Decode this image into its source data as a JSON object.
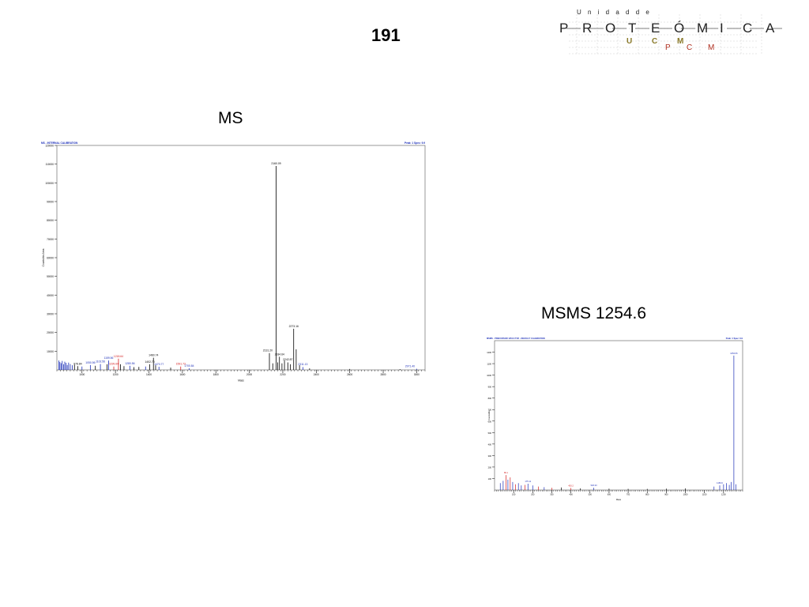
{
  "page": {
    "number": "191"
  },
  "logo": {
    "line1": "U n i d a d   d e",
    "letters": [
      "P",
      "R",
      "O",
      "T",
      "E",
      "Ó",
      "M",
      "I",
      "C",
      "A"
    ],
    "ucm": [
      "U",
      "C",
      "M"
    ],
    "pcm": [
      "P",
      "C",
      "M"
    ],
    "colors": {
      "ucm": "#8a7a2a",
      "pcm": "#b03020",
      "text": "#222222"
    }
  },
  "charts_titles": {
    "ms": "MS",
    "msms": "MSMS 1254.6"
  },
  "chart_data": [
    {
      "type": "bar",
      "id": "ms",
      "title": "MS",
      "header_left": "MS - INTERNAL CALIBRATION",
      "header_right": "Peak: 1 Spec: 9.9",
      "xlabel": "Mass",
      "ylabel": "Counts/bin Area",
      "xlim": [
        850,
        3050
      ],
      "ylim": [
        0,
        120000
      ],
      "x_ticks": [
        1000,
        1200,
        1400,
        1600,
        1800,
        2000,
        2200,
        2400,
        2600,
        2800,
        3000
      ],
      "y_ticks": [
        10000,
        20000,
        30000,
        40000,
        50000,
        60000,
        70000,
        80000,
        90000,
        100000,
        110000,
        120000
      ],
      "colors": {
        "main": "#000000",
        "blue": "#1c2fb8",
        "red": "#d42020"
      },
      "peaks": [
        {
          "x": 862,
          "y": 5000,
          "c": "blue"
        },
        {
          "x": 868,
          "y": 4200,
          "c": "blue"
        },
        {
          "x": 875,
          "y": 3600,
          "c": "blue"
        },
        {
          "x": 882,
          "y": 4800,
          "c": "blue"
        },
        {
          "x": 890,
          "y": 3000,
          "c": "blue"
        },
        {
          "x": 897,
          "y": 4400,
          "c": "blue"
        },
        {
          "x": 905,
          "y": 3800,
          "c": "blue"
        },
        {
          "x": 912,
          "y": 2600,
          "c": "blue"
        },
        {
          "x": 920,
          "y": 3900,
          "c": "blue"
        },
        {
          "x": 930,
          "y": 3100,
          "c": "blue"
        },
        {
          "x": 942,
          "y": 2500,
          "c": "blue"
        },
        {
          "x": 955,
          "y": 2800,
          "c": "black"
        },
        {
          "x": 975,
          "y": 2000,
          "c": "black"
        },
        {
          "x": 1000,
          "y": 1800,
          "c": "blue"
        },
        {
          "x": 1050,
          "y": 2600,
          "c": "blue"
        },
        {
          "x": 1080,
          "y": 2200,
          "c": "black"
        },
        {
          "x": 1110,
          "y": 3100,
          "c": "blue"
        },
        {
          "x": 1150,
          "y": 3000,
          "c": "black"
        },
        {
          "x": 1159,
          "y": 5000,
          "c": "blue"
        },
        {
          "x": 1190,
          "y": 1800,
          "c": "red"
        },
        {
          "x": 1218,
          "y": 6000,
          "c": "red"
        },
        {
          "x": 1230,
          "y": 3000,
          "c": "black"
        },
        {
          "x": 1251,
          "y": 2000,
          "c": "black"
        },
        {
          "x": 1286,
          "y": 2200,
          "c": "blue"
        },
        {
          "x": 1310,
          "y": 1500,
          "c": "black"
        },
        {
          "x": 1340,
          "y": 1600,
          "c": "black"
        },
        {
          "x": 1380,
          "y": 1800,
          "c": "blue"
        },
        {
          "x": 1405,
          "y": 3000,
          "c": "black"
        },
        {
          "x": 1427,
          "y": 6500,
          "c": "black"
        },
        {
          "x": 1440,
          "y": 2500,
          "c": "black"
        },
        {
          "x": 1460,
          "y": 1700,
          "c": "blue"
        },
        {
          "x": 1530,
          "y": 1200,
          "c": "black"
        },
        {
          "x": 1590,
          "y": 1800,
          "c": "red"
        },
        {
          "x": 1640,
          "y": 900,
          "c": "blue"
        },
        {
          "x": 2120,
          "y": 9000,
          "c": "black"
        },
        {
          "x": 2140,
          "y": 3500,
          "c": "black"
        },
        {
          "x": 2160,
          "y": 109000,
          "c": "black"
        },
        {
          "x": 2170,
          "y": 4000,
          "c": "black"
        },
        {
          "x": 2180,
          "y": 7000,
          "c": "black"
        },
        {
          "x": 2195,
          "y": 3500,
          "c": "black"
        },
        {
          "x": 2210,
          "y": 5000,
          "c": "black"
        },
        {
          "x": 2230,
          "y": 4000,
          "c": "black"
        },
        {
          "x": 2245,
          "y": 3000,
          "c": "black"
        },
        {
          "x": 2265,
          "y": 22000,
          "c": "black"
        },
        {
          "x": 2280,
          "y": 11000,
          "c": "black"
        },
        {
          "x": 2300,
          "y": 2500,
          "c": "black"
        },
        {
          "x": 2320,
          "y": 1500,
          "c": "blue"
        },
        {
          "x": 2360,
          "y": 800,
          "c": "black"
        },
        {
          "x": 2600,
          "y": 500,
          "c": "black"
        },
        {
          "x": 2900,
          "y": 400,
          "c": "black"
        },
        {
          "x": 3000,
          "y": 600,
          "c": "blue"
        }
      ],
      "annotations": [
        {
          "x": 2160,
          "y": 109000,
          "label": "2160.09",
          "c": "black"
        },
        {
          "x": 2265,
          "y": 22000,
          "label": "2273.16",
          "c": "black"
        },
        {
          "x": 2110,
          "y": 9000,
          "label": "2131.20",
          "c": "black"
        },
        {
          "x": 2180,
          "y": 7000,
          "label": "2184.64",
          "c": "black"
        },
        {
          "x": 2230,
          "y": 4200,
          "label": "2242.87",
          "c": "black"
        },
        {
          "x": 2320,
          "y": 1600,
          "label": "2311.13",
          "c": "blue"
        },
        {
          "x": 1427,
          "y": 6500,
          "label": "1460.74",
          "c": "black"
        },
        {
          "x": 1218,
          "y": 6000,
          "label": "1218.64",
          "c": "red"
        },
        {
          "x": 1159,
          "y": 5000,
          "label": "1159.56",
          "c": "blue"
        },
        {
          "x": 1110,
          "y": 3100,
          "label": "1102.56",
          "c": "blue"
        },
        {
          "x": 1286,
          "y": 2200,
          "label": "1280.56",
          "c": "blue"
        },
        {
          "x": 1405,
          "y": 3000,
          "label": "1402.70",
          "c": "black"
        },
        {
          "x": 1050,
          "y": 2600,
          "label": "1050.56",
          "c": "blue"
        },
        {
          "x": 975,
          "y": 2000,
          "label": "978.84",
          "c": "black"
        },
        {
          "x": 1590,
          "y": 1800,
          "label": "1591.73",
          "c": "red"
        },
        {
          "x": 1460,
          "y": 1700,
          "label": "1470.77",
          "c": "blue"
        },
        {
          "x": 1640,
          "y": 900,
          "label": "1700.84",
          "c": "blue"
        },
        {
          "x": 1190,
          "y": 1800,
          "label": "1199.64",
          "c": "red"
        },
        {
          "x": 2960,
          "y": 600,
          "label": "2971.40",
          "c": "blue"
        }
      ]
    },
    {
      "type": "bar",
      "id": "msms",
      "title": "MSMS 1254.6",
      "header_left": "MSMS - PRECURSOR 1254.6 TOF - DEFAULT CALIBRATION",
      "header_right": "Peak: 1 Spec: 9.9",
      "xlabel": "Mass",
      "ylabel": "Counts/bin",
      "xlim": [
        0,
        1300
      ],
      "ylim": [
        0,
        1300
      ],
      "x_ticks": [
        100,
        200,
        300,
        400,
        500,
        600,
        700,
        800,
        900,
        1000,
        1100,
        1200
      ],
      "y_ticks": [
        100,
        200,
        300,
        400,
        500,
        600,
        700,
        800,
        900,
        1000,
        1100,
        1200
      ],
      "colors": {
        "main": "#000000",
        "blue": "#1c2fb8",
        "red": "#d42020"
      },
      "peaks": [
        {
          "x": 30,
          "y": 60,
          "c": "blue"
        },
        {
          "x": 45,
          "y": 80,
          "c": "blue"
        },
        {
          "x": 60,
          "y": 130,
          "c": "red"
        },
        {
          "x": 70,
          "y": 90,
          "c": "blue"
        },
        {
          "x": 82,
          "y": 110,
          "c": "red"
        },
        {
          "x": 95,
          "y": 70,
          "c": "blue"
        },
        {
          "x": 110,
          "y": 50,
          "c": "red"
        },
        {
          "x": 125,
          "y": 60,
          "c": "blue"
        },
        {
          "x": 140,
          "y": 40,
          "c": "blue"
        },
        {
          "x": 160,
          "y": 45,
          "c": "red"
        },
        {
          "x": 175,
          "y": 55,
          "c": "blue"
        },
        {
          "x": 200,
          "y": 40,
          "c": "blue"
        },
        {
          "x": 230,
          "y": 30,
          "c": "red"
        },
        {
          "x": 260,
          "y": 25,
          "c": "blue"
        },
        {
          "x": 300,
          "y": 20,
          "c": "red"
        },
        {
          "x": 350,
          "y": 22,
          "c": "black"
        },
        {
          "x": 400,
          "y": 18,
          "c": "red"
        },
        {
          "x": 450,
          "y": 15,
          "c": "black"
        },
        {
          "x": 520,
          "y": 20,
          "c": "blue"
        },
        {
          "x": 600,
          "y": 12,
          "c": "black"
        },
        {
          "x": 700,
          "y": 10,
          "c": "black"
        },
        {
          "x": 800,
          "y": 10,
          "c": "black"
        },
        {
          "x": 900,
          "y": 12,
          "c": "black"
        },
        {
          "x": 1000,
          "y": 15,
          "c": "black"
        },
        {
          "x": 1150,
          "y": 30,
          "c": "blue"
        },
        {
          "x": 1180,
          "y": 40,
          "c": "blue"
        },
        {
          "x": 1200,
          "y": 50,
          "c": "blue"
        },
        {
          "x": 1215,
          "y": 60,
          "c": "blue"
        },
        {
          "x": 1230,
          "y": 45,
          "c": "blue"
        },
        {
          "x": 1240,
          "y": 70,
          "c": "blue"
        },
        {
          "x": 1254,
          "y": 1170,
          "c": "blue"
        },
        {
          "x": 1265,
          "y": 50,
          "c": "blue"
        }
      ],
      "annotations": [
        {
          "x": 1254,
          "y": 1170,
          "label": "1254.66",
          "c": "blue"
        },
        {
          "x": 60,
          "y": 130,
          "label": "86.1",
          "c": "red"
        },
        {
          "x": 175,
          "y": 55,
          "label": "175.11",
          "c": "blue"
        },
        {
          "x": 520,
          "y": 20,
          "label": "520.33",
          "c": "blue"
        },
        {
          "x": 400,
          "y": 18,
          "label": "400.2",
          "c": "red"
        },
        {
          "x": 1180,
          "y": 40,
          "label": "1183.6",
          "c": "blue"
        }
      ]
    }
  ]
}
